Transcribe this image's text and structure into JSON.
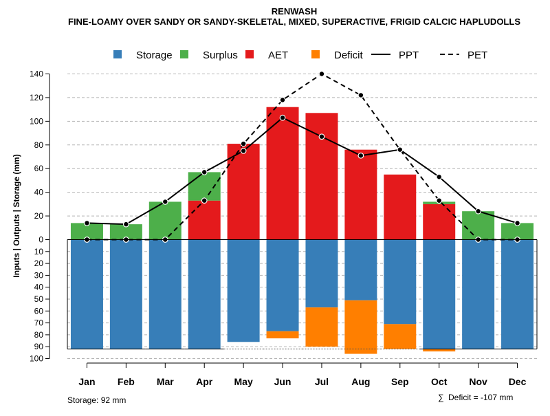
{
  "chart_data": {
    "type": "bar",
    "title": "RENWASH",
    "subtitle": "FINE-LOAMY OVER SANDY OR SANDY-SKELETAL, MIXED, SUPERACTIVE, FRIGID CALCIC HAPLUDOLLS",
    "ylabel": "Inputs | Outputs | Storage    (mm)",
    "categories": [
      "Jan",
      "Feb",
      "Mar",
      "Apr",
      "May",
      "Jun",
      "Jul",
      "Aug",
      "Sep",
      "Oct",
      "Nov",
      "Dec"
    ],
    "upper_axis": {
      "ylim": [
        0,
        140
      ],
      "ticks": [
        "0",
        "20",
        "40",
        "60",
        "80",
        "100",
        "120",
        "140"
      ],
      "tick_values": [
        0,
        20,
        40,
        60,
        80,
        100,
        120,
        140
      ]
    },
    "lower_axis": {
      "ylim": [
        0,
        100
      ],
      "ticks": [
        "10",
        "20",
        "30",
        "40",
        "50",
        "60",
        "70",
        "80",
        "90",
        "100"
      ],
      "tick_values": [
        10,
        20,
        30,
        40,
        50,
        60,
        70,
        80,
        90,
        100
      ]
    },
    "series": [
      {
        "name": "Storage",
        "color": "#377EB8",
        "position": "below",
        "values": [
          92,
          92,
          92,
          92,
          86,
          77,
          57,
          51,
          71,
          92,
          92,
          92
        ]
      },
      {
        "name": "Surplus",
        "color": "#4DAF4A",
        "position": "above",
        "values": [
          14,
          13,
          32,
          24,
          0,
          0,
          0,
          0,
          0,
          2,
          24,
          14
        ]
      },
      {
        "name": "AET",
        "color": "#E41A1C",
        "position": "above",
        "values": [
          0,
          0,
          0,
          33,
          81,
          112,
          107,
          76,
          55,
          30,
          0,
          0
        ]
      },
      {
        "name": "Deficit",
        "color": "#FF7F00",
        "position": "below",
        "values": [
          0,
          0,
          0,
          0,
          0,
          6,
          33,
          45,
          21,
          2,
          0,
          0
        ]
      },
      {
        "name": "PPT",
        "color": "#000000",
        "style": "solid",
        "values": [
          14,
          13,
          32,
          57,
          75,
          103,
          87,
          71,
          76,
          53,
          24,
          14
        ]
      },
      {
        "name": "PET",
        "color": "#000000",
        "style": "dashed",
        "values": [
          0,
          0,
          0,
          33,
          81,
          118,
          140,
          122,
          76,
          33,
          0,
          0
        ]
      }
    ],
    "storage_capacity": 92,
    "legend_position": "top",
    "grid": true
  },
  "footer": {
    "storage_note": "Storage: 92 mm",
    "deficit_symbol": "∑",
    "deficit_note": "Deficit = -107 mm"
  }
}
